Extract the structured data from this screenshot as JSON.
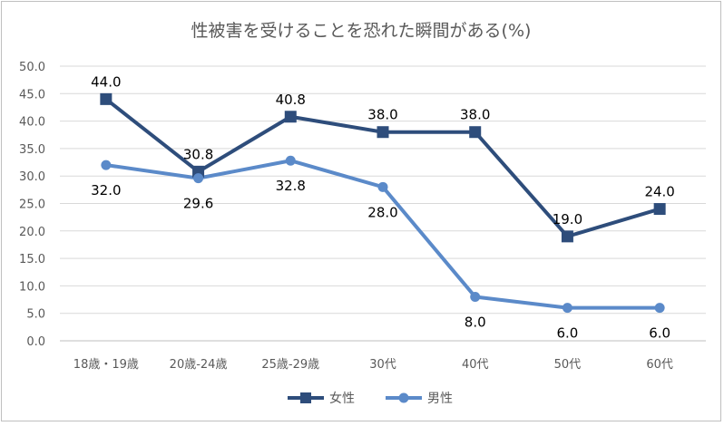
{
  "chart_data": {
    "type": "line",
    "title": "性被害を受けることを恐れた瞬間がある(%)",
    "xlabel": "",
    "ylabel": "",
    "categories": [
      "18歳・19歳",
      "20歳-24歳",
      "25歳-29歳",
      "30代",
      "40代",
      "50代",
      "60代"
    ],
    "ylim": [
      0,
      50
    ],
    "yticks": [
      "0.0",
      "5.0",
      "10.0",
      "15.0",
      "20.0",
      "25.0",
      "30.0",
      "35.0",
      "40.0",
      "45.0",
      "50.0"
    ],
    "grid": true,
    "legend_position": "bottom",
    "series": [
      {
        "name": "女性",
        "values": [
          44.0,
          30.8,
          40.8,
          38.0,
          38.0,
          19.0,
          24.0
        ],
        "labels": [
          "44.0",
          "30.8",
          "40.8",
          "38.0",
          "38.0",
          "19.0",
          "24.0"
        ],
        "color": "#2e4d7b",
        "marker": "square"
      },
      {
        "name": "男性",
        "values": [
          32.0,
          29.6,
          32.8,
          28.0,
          8.0,
          6.0,
          6.0
        ],
        "labels": [
          "32.0",
          "29.6",
          "32.8",
          "28.0",
          "8.0",
          "6.0",
          "6.0"
        ],
        "color": "#5b8ac9",
        "marker": "circle"
      }
    ]
  }
}
